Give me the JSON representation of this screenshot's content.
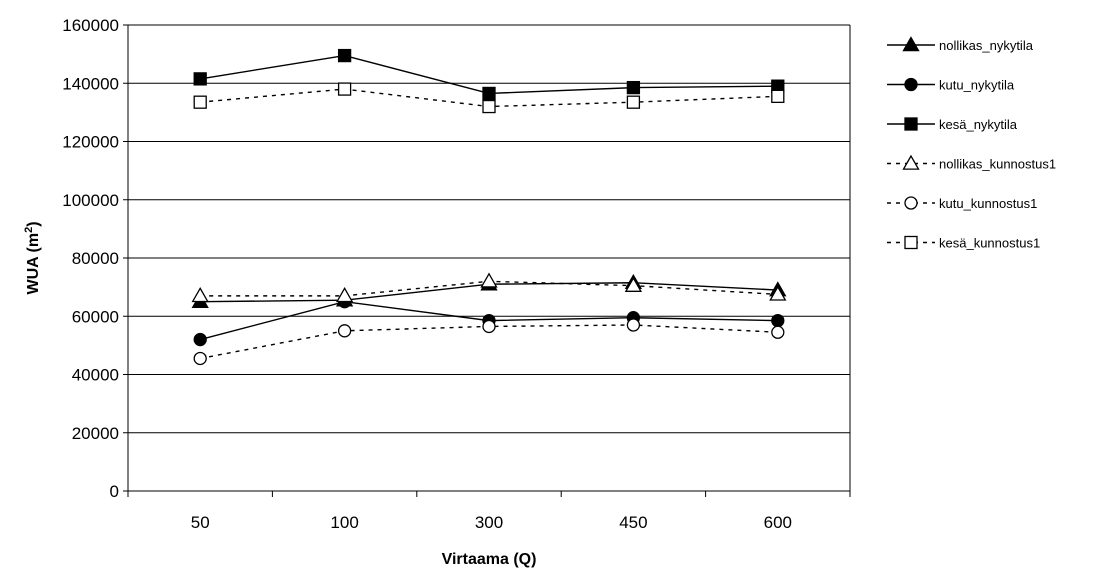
{
  "chart_data": {
    "type": "line",
    "xlabel": "Virtaama (Q)",
    "ylabel": "WUA (m²)",
    "ylabel_main": "WUA (m",
    "ylabel_sup": "2",
    "ylabel_close": ")",
    "categories": [
      "50",
      "100",
      "300",
      "450",
      "600"
    ],
    "ylim": [
      0,
      160000
    ],
    "yticks": [
      0,
      20000,
      40000,
      60000,
      80000,
      100000,
      120000,
      140000,
      160000
    ],
    "grid": "horizontal",
    "legend_position": "right",
    "series": [
      {
        "name": "nollikas_nykytila",
        "values": [
          65000,
          65500,
          71000,
          71500,
          69000
        ],
        "marker": "triangle",
        "filled": true,
        "dashed": false
      },
      {
        "name": "kutu_nykytila",
        "values": [
          52000,
          65000,
          58500,
          59500,
          58500
        ],
        "marker": "circle",
        "filled": true,
        "dashed": false
      },
      {
        "name": "kesä_nykytila",
        "values": [
          141500,
          149500,
          136500,
          138500,
          139000
        ],
        "marker": "square",
        "filled": true,
        "dashed": false
      },
      {
        "name": "nollikas_kunnostus1",
        "values": [
          67000,
          67000,
          72000,
          70500,
          67500
        ],
        "marker": "triangle",
        "filled": false,
        "dashed": true
      },
      {
        "name": "kutu_kunnostus1",
        "values": [
          45500,
          55000,
          56500,
          57000,
          54500
        ],
        "marker": "circle",
        "filled": false,
        "dashed": true
      },
      {
        "name": "kesä_kunnostus1",
        "values": [
          133500,
          138000,
          132000,
          133500,
          135500
        ],
        "marker": "square",
        "filled": false,
        "dashed": true
      }
    ]
  }
}
